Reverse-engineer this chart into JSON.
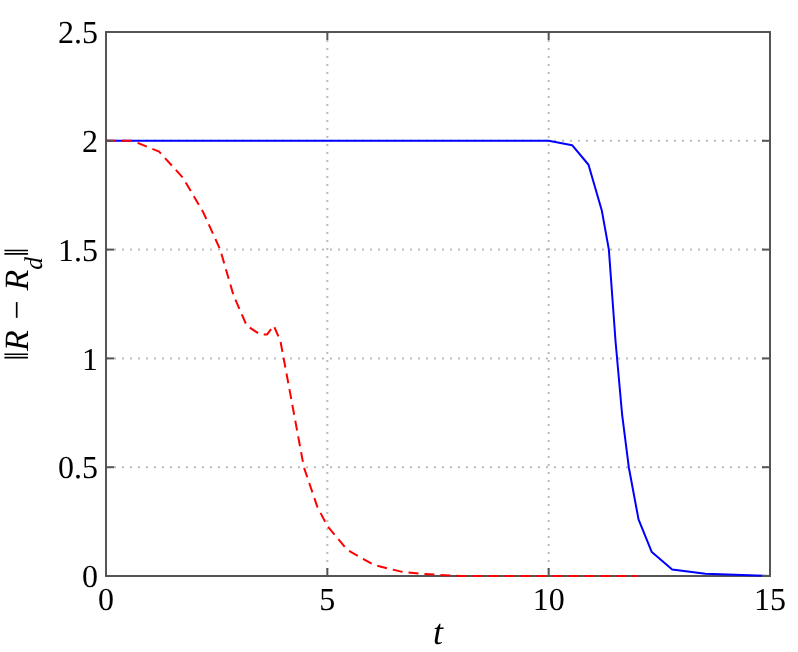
{
  "chart_data": {
    "type": "line",
    "xlabel": "t",
    "ylabel": "‖R − R$_{d}$‖",
    "xlim": [
      0,
      15
    ],
    "ylim": [
      0,
      2.5
    ],
    "xticks": [
      0,
      5,
      10,
      15
    ],
    "yticks": [
      0,
      0.5,
      1,
      1.5,
      2,
      2.5
    ],
    "grid": true,
    "series": [
      {
        "color": "#0000ff",
        "line_style": "solid",
        "x": [
          0,
          10,
          10.53,
          10.9,
          11.2,
          11.36,
          11.51,
          11.66,
          11.81,
          12.03,
          12.33,
          12.79,
          13.54,
          15
        ],
        "values": [
          2,
          2,
          1.98,
          1.89,
          1.68,
          1.5,
          1.08,
          0.74,
          0.5,
          0.26,
          0.11,
          0.03,
          0.01,
          0
        ]
      },
      {
        "color": "#ff0000",
        "line_style": "dashed",
        "x": [
          0,
          0.6,
          1.2,
          1.74,
          2.2,
          2.58,
          2.88,
          3.18,
          3.48,
          3.64,
          3.79,
          3.94,
          4.17,
          4.47,
          4.77,
          5,
          5.45,
          6.06,
          6.67,
          7.1,
          8,
          12
        ],
        "values": [
          2,
          2,
          1.95,
          1.83,
          1.67,
          1.5,
          1.29,
          1.15,
          1.11,
          1.11,
          1.15,
          1.08,
          0.83,
          0.5,
          0.32,
          0.23,
          0.12,
          0.05,
          0.02,
          0.01,
          0,
          0
        ]
      }
    ]
  }
}
